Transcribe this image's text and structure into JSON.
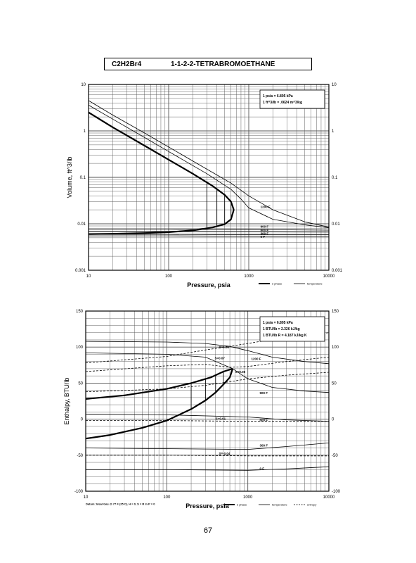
{
  "page": {
    "title_formula": "C2H2Br4",
    "title_name": "1-1-2-2-TETRABROMOETHANE",
    "page_number": "67"
  },
  "colors": {
    "ink": "#000000",
    "grid": "#555555",
    "background": "#ffffff"
  },
  "chart_data": [
    {
      "type": "line",
      "title": "",
      "xlabel": "Pressure,  psia",
      "ylabel": "Volume, ft^3/lb",
      "xscale": "log",
      "yscale": "log",
      "xlim": [
        10,
        10000
      ],
      "ylim": [
        0.001,
        10
      ],
      "x_tick_labels": [
        "10",
        "100",
        "1000",
        "10000"
      ],
      "y_tick_labels": [
        "0.001",
        "0.01",
        "0.1",
        "1",
        "10"
      ],
      "y_tick_values": [
        0.001,
        0.01,
        0.1,
        1,
        10
      ],
      "grid": true,
      "info_box": [
        "1 psia  =  6.895 kPa",
        "1 ft^3/lb  =  .0624 m^3/kg"
      ],
      "legend": {
        "placement": "bottom-right",
        "entries": [
          {
            "label": "2 phase",
            "style": "thick"
          },
          {
            "label": "temperature",
            "style": "thin"
          }
        ]
      },
      "series": [
        {
          "kind": "2 phase",
          "x": [
            10,
            20,
            50,
            100,
            200,
            350,
            500,
            600,
            650
          ],
          "y": [
            2.5,
            1.2,
            0.48,
            0.24,
            0.12,
            0.066,
            0.042,
            0.03,
            0.02
          ]
        },
        {
          "kind": "2 phase",
          "x": [
            10,
            20,
            50,
            100,
            200,
            350,
            500,
            600,
            650
          ],
          "y": [
            0.006,
            0.0061,
            0.0063,
            0.0066,
            0.0072,
            0.0083,
            0.0098,
            0.0125,
            0.02
          ]
        },
        {
          "kind": "temperature",
          "x": [
            10,
            20,
            50,
            100,
            300,
            600,
            1000,
            2000,
            5000,
            10000
          ],
          "y": [
            4.5,
            2.2,
            0.9,
            0.45,
            0.15,
            0.075,
            0.04,
            0.02,
            0.011,
            0.0085
          ]
        },
        {
          "kind": "temperature",
          "x": [
            10,
            20,
            50,
            100,
            300,
            600,
            800,
            1000,
            2000,
            5000,
            10000
          ],
          "y": [
            3.6,
            1.8,
            0.72,
            0.36,
            0.12,
            0.055,
            0.034,
            0.022,
            0.0125,
            0.0095,
            0.0082
          ]
        },
        {
          "kind": "temperature",
          "x": [
            10,
            100,
            1000,
            10000
          ],
          "y": [
            0.0076,
            0.0076,
            0.0075,
            0.0073
          ]
        },
        {
          "kind": "temperature",
          "x": [
            10,
            100,
            1000,
            10000
          ],
          "y": [
            0.0068,
            0.0068,
            0.0067,
            0.0066
          ]
        },
        {
          "kind": "temperature",
          "x": [
            10,
            100,
            1000,
            10000
          ],
          "y": [
            0.0059,
            0.0059,
            0.0058,
            0.0058
          ]
        },
        {
          "kind": "temperature",
          "x": [
            10,
            100,
            1000,
            10000
          ],
          "y": [
            0.0055,
            0.0055,
            0.0054,
            0.0054
          ]
        }
      ],
      "verticals": [
        {
          "x": 300,
          "y1": 0.0081,
          "y2": 0.077
        },
        {
          "x": 400,
          "y1": 0.0087,
          "y2": 0.058
        },
        {
          "x": 500,
          "y1": 0.0098,
          "y2": 0.042
        },
        {
          "x": 600,
          "y1": 0.0125,
          "y2": 0.03
        }
      ],
      "annotations": [
        {
          "text": "1200 F",
          "x": 1400,
          "y": 0.022
        },
        {
          "text": "900 F",
          "x": 1400,
          "y": 0.0083
        },
        {
          "text": "600 F",
          "x": 1400,
          "y": 0.0069
        },
        {
          "text": "300 F",
          "x": 1400,
          "y": 0.0058
        },
        {
          "text": "0 F",
          "x": 1400,
          "y": 0.005
        }
      ]
    },
    {
      "type": "line",
      "title": "",
      "xlabel": "Pressure,  psia",
      "ylabel": "Enthalpy, BTU/lb",
      "xscale": "log",
      "yscale": "linear",
      "xlim": [
        10,
        10000
      ],
      "ylim": [
        -100,
        150
      ],
      "x_tick_labels": [
        "10",
        "100",
        "1000",
        "10000"
      ],
      "y_tick_labels": [
        "-100",
        "-50",
        "0",
        "50",
        "100",
        "150"
      ],
      "y_tick_values": [
        -100,
        -50,
        0,
        50,
        100,
        150
      ],
      "grid": true,
      "info_box": [
        "1 psia  =  6.895 kPa",
        "1 BTU/lb  =  2.326 kJ/kg",
        "1 BTU/lb R  =  4.187 kJ/kg K"
      ],
      "legend": {
        "placement": "bottom-right",
        "entries": [
          {
            "label": "2 phase",
            "style": "thick"
          },
          {
            "label": "temperature",
            "style": "thin"
          },
          {
            "label": "entropy",
            "style": "dashed"
          }
        ]
      },
      "footnote": "Datum: Ideal Gas @ 77 F (25 C),  H = 0,  S = R ln P = 0",
      "series": [
        {
          "kind": "2 phase",
          "x": [
            10,
            30,
            100,
            200,
            350,
            500,
            650
          ],
          "y": [
            28,
            33,
            42,
            50,
            58,
            66,
            70
          ]
        },
        {
          "kind": "2 phase",
          "x": [
            10,
            20,
            50,
            100,
            200,
            300,
            400,
            500,
            600,
            650
          ],
          "y": [
            -27,
            -22,
            -12,
            -2,
            14,
            26,
            37,
            48,
            58,
            70
          ]
        },
        {
          "kind": "temperature",
          "x": [
            10,
            100,
            300,
            600,
            1000,
            2000,
            5000,
            10000
          ],
          "y": [
            108,
            107,
            105,
            101,
            95,
            86,
            80,
            77
          ]
        },
        {
          "kind": "temperature",
          "x": [
            10,
            100,
            300,
            650,
            1000,
            2000,
            5000,
            10000
          ],
          "y": [
            92,
            90,
            86,
            70,
            56,
            44,
            39,
            37
          ]
        },
        {
          "kind": "temperature",
          "x": [
            10,
            100,
            1000,
            3000,
            10000
          ],
          "y": [
            7,
            6,
            3,
            -1,
            -3
          ]
        },
        {
          "kind": "temperature",
          "x": [
            10,
            100,
            1000,
            3000,
            10000
          ],
          "y": [
            -40,
            -41,
            -42,
            -38,
            -33
          ]
        },
        {
          "kind": "temperature",
          "x": [
            10,
            100,
            1000,
            3000,
            10000
          ],
          "y": [
            -70,
            -70,
            -71,
            -69,
            -66
          ]
        },
        {
          "kind": "entropy",
          "x": [
            10,
            100,
            300,
            1000,
            3000,
            10000
          ],
          "y": [
            78,
            87,
            96,
            105,
            114,
            120
          ]
        },
        {
          "kind": "entropy",
          "x": [
            10,
            100,
            300,
            600,
            1000,
            3000,
            10000
          ],
          "y": [
            66,
            74,
            76,
            72,
            73,
            80,
            86
          ]
        },
        {
          "kind": "entropy",
          "x": [
            10,
            100,
            300,
            600,
            1000,
            3000,
            10000
          ],
          "y": [
            38,
            42,
            47,
            52,
            56,
            61,
            65
          ]
        },
        {
          "kind": "entropy",
          "x": [
            10,
            100,
            1000,
            10000
          ],
          "y": [
            -2,
            -2,
            -3,
            -3
          ]
        },
        {
          "kind": "entropy",
          "x": [
            10,
            100,
            1000,
            10000
          ],
          "y": [
            -50,
            -50,
            -51,
            -51
          ]
        }
      ],
      "verticals": [
        {
          "x": 200,
          "y1": 14,
          "y2": 50
        },
        {
          "x": 300,
          "y1": 26,
          "y2": 55
        },
        {
          "x": 400,
          "y1": 37,
          "y2": 60
        },
        {
          "x": 500,
          "y1": 48,
          "y2": 66
        }
      ],
      "annotations": [
        {
          "text": "S=0.06",
          "x": 440,
          "y": 98
        },
        {
          "text": "S=0.07",
          "x": 390,
          "y": 83
        },
        {
          "text": "1200 F",
          "x": 1100,
          "y": 82
        },
        {
          "text": "S=0.08",
          "x": 700,
          "y": 64
        },
        {
          "text": "900 F",
          "x": 1400,
          "y": 35
        },
        {
          "text": "S=0.01",
          "x": 400,
          "y": -1
        },
        {
          "text": "600 F",
          "x": 1400,
          "y": -3
        },
        {
          "text": "300 F",
          "x": 1400,
          "y": -38
        },
        {
          "text": "S=-0.04",
          "x": 440,
          "y": -49
        },
        {
          "text": "0 F",
          "x": 1400,
          "y": -70
        }
      ]
    }
  ]
}
